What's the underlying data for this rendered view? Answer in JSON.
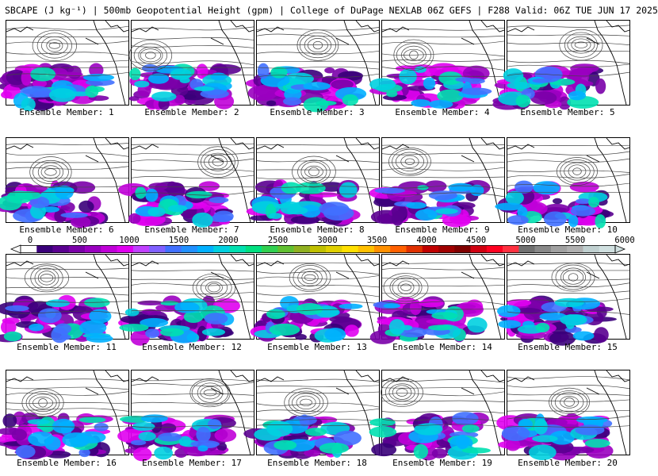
{
  "title": "SBCAPE (J kg⁻¹) | 500mb Geopotential Height (gpm) | College of DuPage NEXLAB 06Z GEFS | F288 Valid: 06Z TUE JUN 17 2025",
  "caption_prefix": "Ensemble Member: ",
  "members": [
    1,
    2,
    3,
    4,
    5,
    6,
    7,
    8,
    9,
    10,
    11,
    12,
    13,
    14,
    15,
    16,
    17,
    18,
    19,
    20
  ],
  "colorbar": {
    "tick_labels": [
      "0",
      "500",
      "1000",
      "1500",
      "2000",
      "2500",
      "3000",
      "3500",
      "4000",
      "4500",
      "5000",
      "5500",
      "6000"
    ],
    "colors": [
      "#ffffff",
      "#3a007a",
      "#5a0090",
      "#7a00a8",
      "#9a00c0",
      "#c000d8",
      "#e000f0",
      "#c040ff",
      "#8060ff",
      "#4070ff",
      "#2090ff",
      "#00b0ff",
      "#00d0e0",
      "#00e0b0",
      "#00e080",
      "#30d050",
      "#60c030",
      "#90b020",
      "#c0c000",
      "#e0d000",
      "#ffe000",
      "#ffc000",
      "#ff9000",
      "#ff6000",
      "#e03000",
      "#c00000",
      "#a00000",
      "#800000",
      "#d00010",
      "#ff0020",
      "#ff3040",
      "#707070",
      "#888888",
      "#a0a0a0",
      "#b0b0b0",
      "#c0d0d0",
      "#d0e0e0"
    ]
  },
  "icons": [
    "colorbar-left-arrow-icon",
    "colorbar-right-arrow-icon"
  ]
}
